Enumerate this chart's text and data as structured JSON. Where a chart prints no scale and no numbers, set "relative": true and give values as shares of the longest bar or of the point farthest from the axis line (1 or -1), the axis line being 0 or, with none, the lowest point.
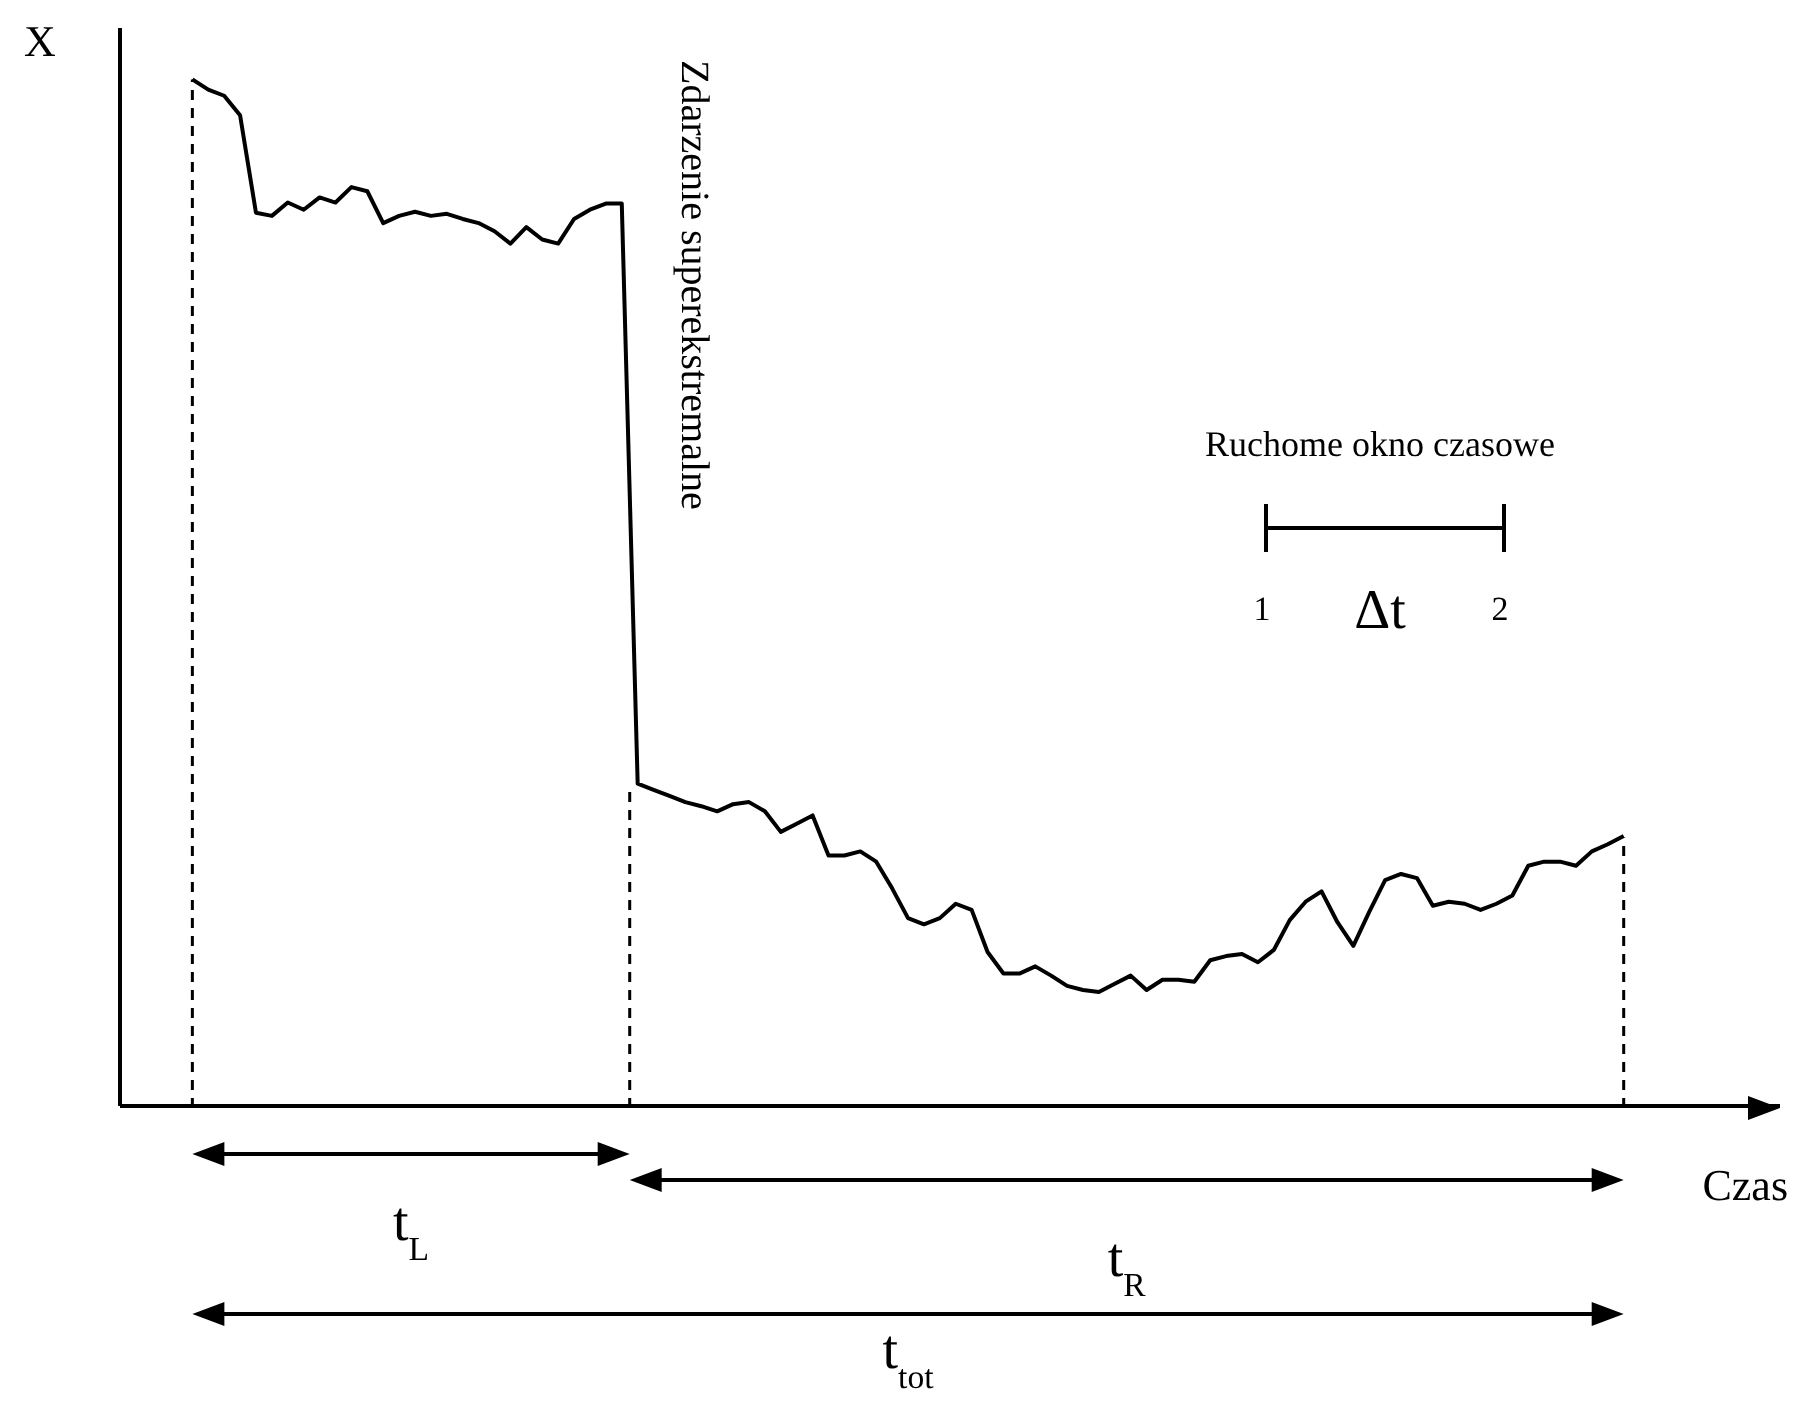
{
  "chart_data": {
    "type": "line",
    "relative": true,
    "xlabel": "Czas",
    "ylabel": "X",
    "color": "#000000",
    "annotations": [
      "Zdarzenie superekstremalne",
      "Ruchome okno czasowe",
      "1",
      "Δt",
      "2",
      "t$_{L}$",
      "t$_{R}$",
      "t$_{tot}$"
    ],
    "categories": [
      null,
      null,
      null,
      null,
      null,
      null,
      null,
      null,
      null,
      null,
      null,
      null,
      null,
      null,
      null,
      null,
      null,
      null,
      null,
      null,
      null,
      null,
      null,
      null,
      null,
      null,
      null,
      null,
      null,
      null,
      null,
      null,
      null,
      null,
      null,
      null,
      null,
      null,
      null,
      null,
      null,
      null,
      null,
      null,
      null,
      null,
      null,
      null,
      null,
      null,
      null,
      null,
      null,
      null,
      null,
      null,
      null,
      null,
      null,
      null,
      null,
      null,
      null,
      null,
      null,
      null,
      null,
      null,
      null,
      null,
      null,
      null,
      null,
      null,
      null,
      null,
      null,
      null,
      null,
      null,
      null,
      null,
      null,
      null,
      null,
      null,
      null,
      null,
      null,
      null,
      null
    ],
    "values": [
      1.0,
      0.99,
      0.984,
      0.965,
      0.87,
      0.867,
      0.88,
      0.873,
      0.885,
      0.88,
      0.895,
      0.891,
      0.86,
      0.867,
      0.871,
      0.867,
      0.869,
      0.864,
      0.86,
      0.852,
      0.84,
      0.856,
      0.844,
      0.84,
      0.864,
      0.873,
      0.879,
      0.879,
      0.314,
      0.308,
      0.302,
      0.296,
      0.292,
      0.287,
      0.294,
      0.296,
      0.287,
      0.267,
      0.275,
      0.283,
      0.244,
      0.244,
      0.248,
      0.238,
      0.212,
      0.183,
      0.177,
      0.183,
      0.197,
      0.191,
      0.15,
      0.129,
      0.129,
      0.136,
      0.127,
      0.117,
      0.113,
      0.111,
      0.119,
      0.127,
      0.113,
      0.123,
      0.123,
      0.121,
      0.142,
      0.146,
      0.148,
      0.14,
      0.152,
      0.181,
      0.199,
      0.209,
      0.179,
      0.156,
      0.189,
      0.22,
      0.226,
      0.222,
      0.195,
      0.199,
      0.197,
      0.191,
      0.197,
      0.205,
      0.234,
      0.238,
      0.238,
      0.234,
      0.248,
      0.255,
      0.263
    ]
  }
}
